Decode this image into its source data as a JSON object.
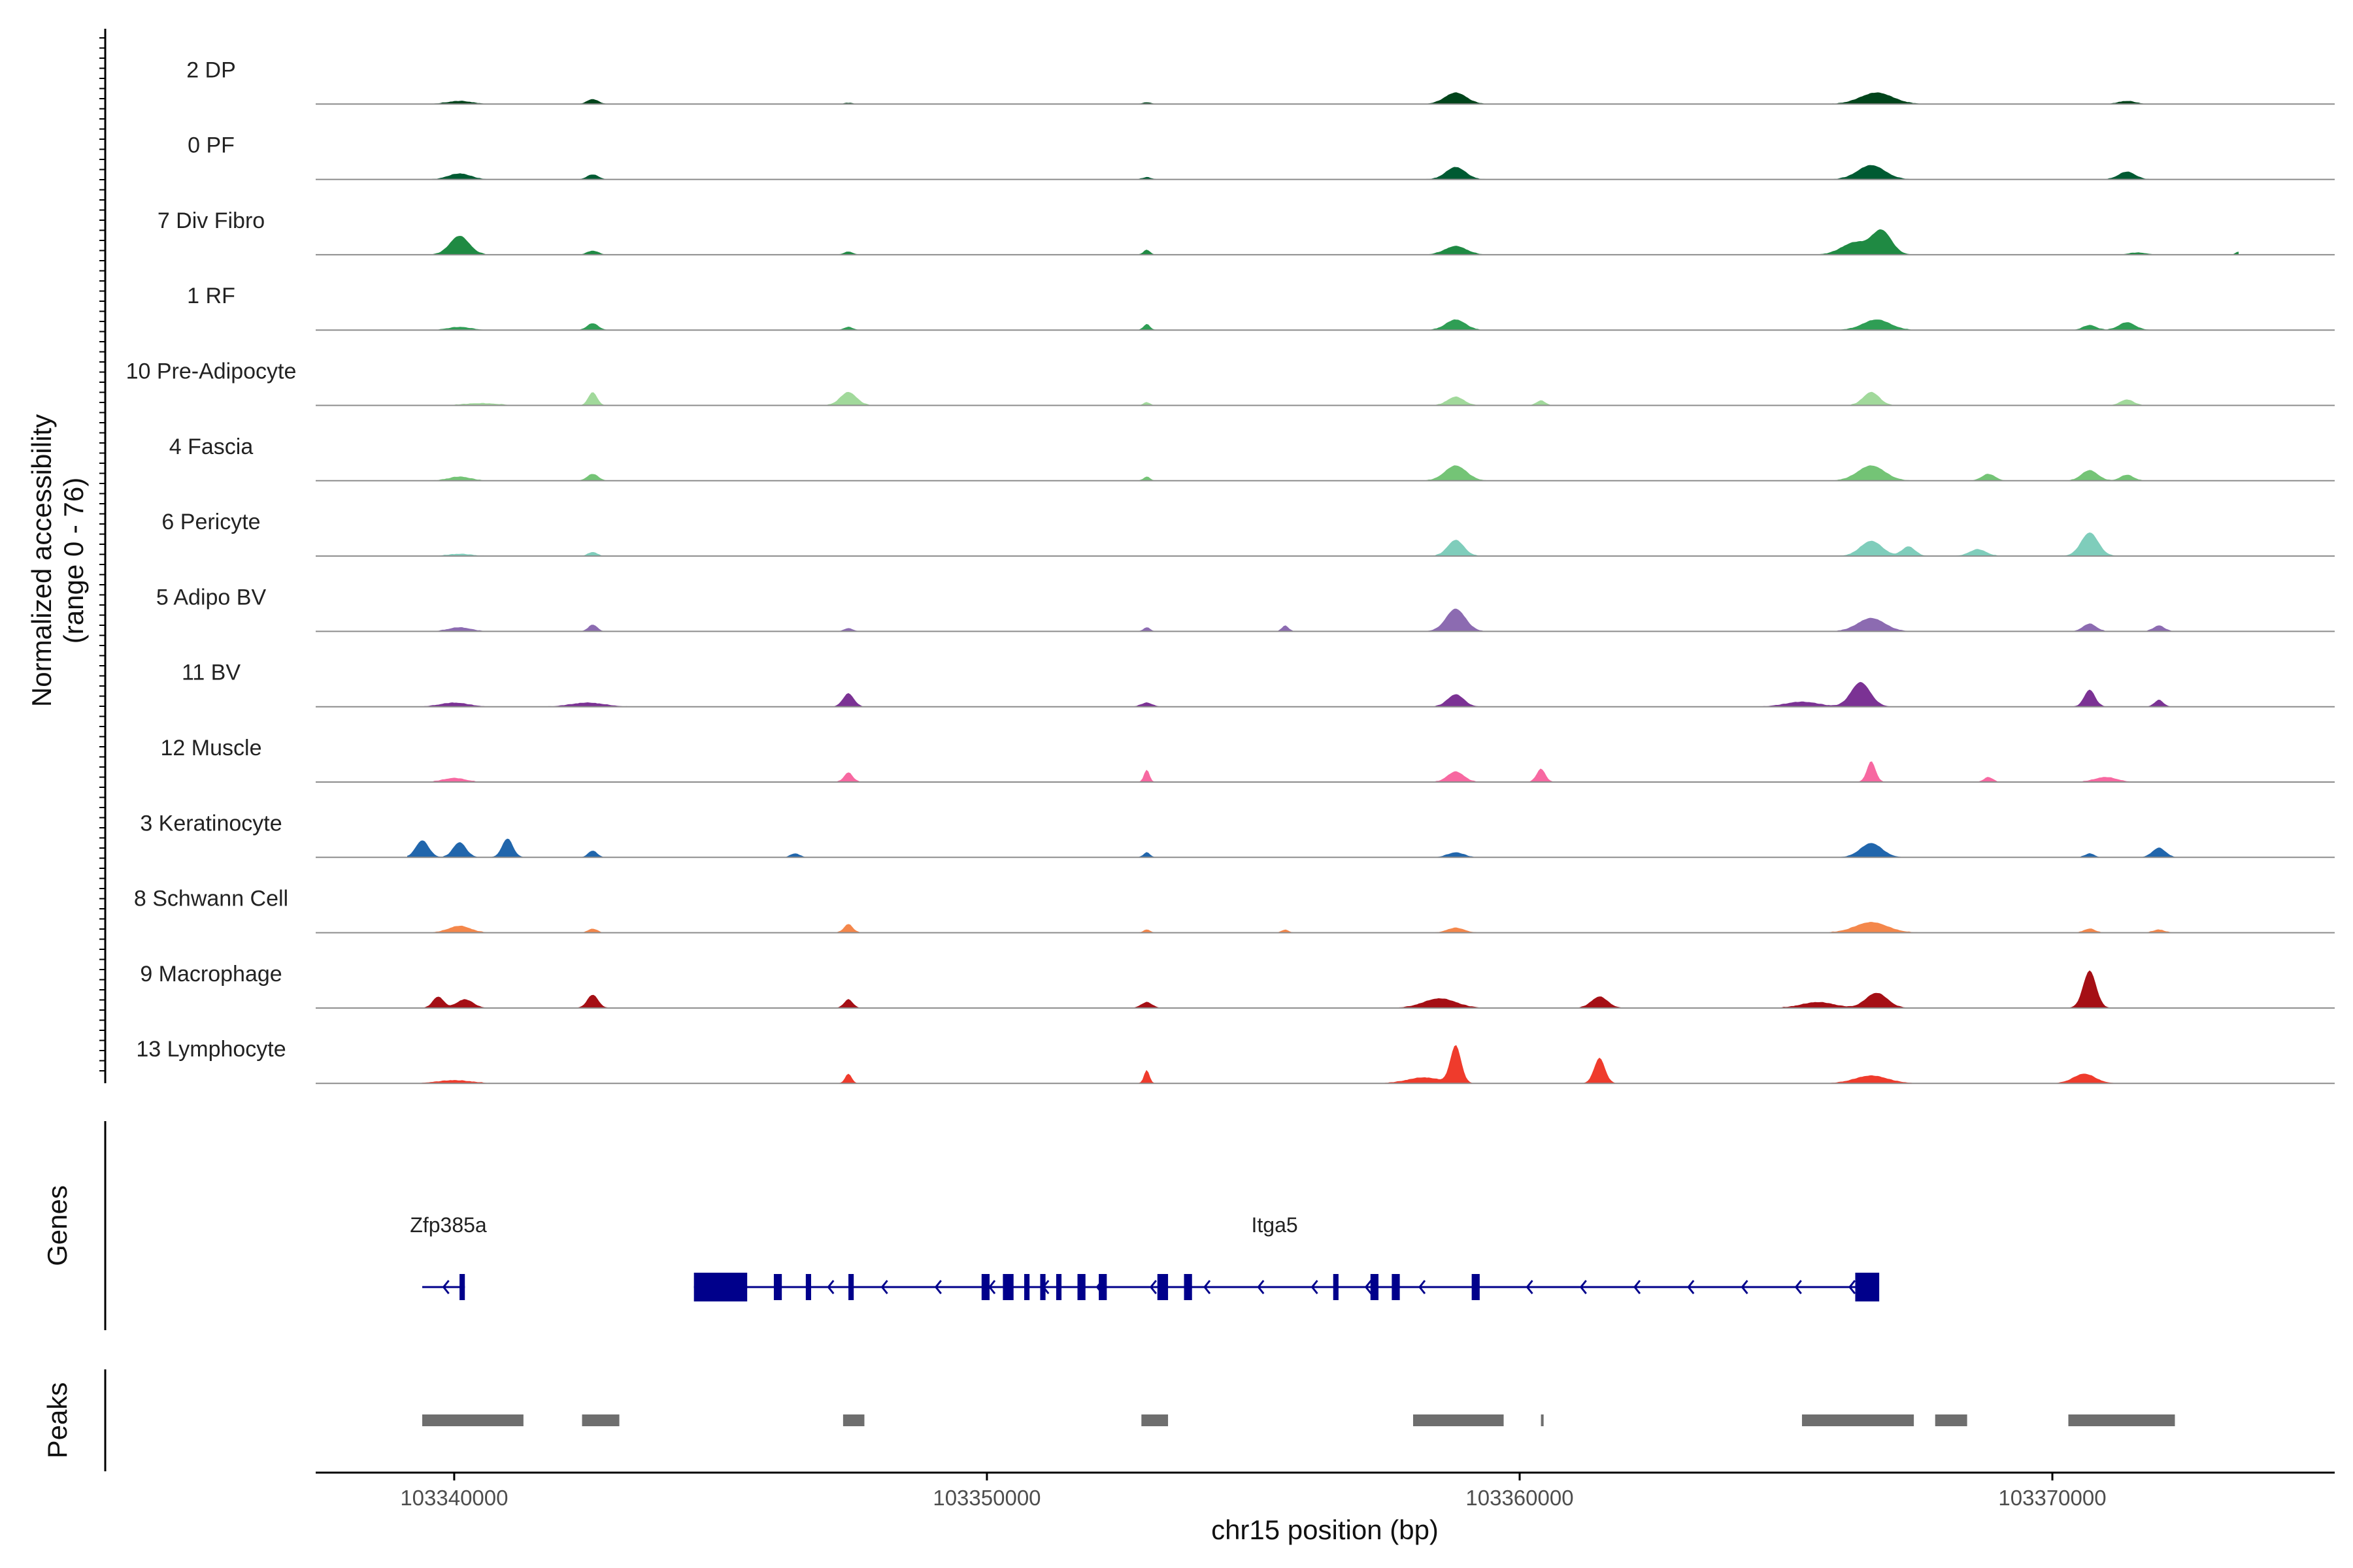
{
  "chart_data": {
    "type": "area",
    "subtype": "genome-coverage-tracks",
    "ylabel": "Normalized accessibility",
    "ylabel_range": "(range 0 - 76)",
    "ylim": [
      0,
      76
    ],
    "xlabel": "chr15 position (bp)",
    "xlim": [
      103337400,
      103375300
    ],
    "xticks": [
      103340000,
      103350000,
      103360000,
      103370000
    ],
    "track_labels": {
      "genes": "Genes",
      "peaks": "Peaks"
    },
    "tracks": [
      {
        "name": "2 DP",
        "color": "#00441b",
        "peaks": [
          [
            103340100,
            3,
            220
          ],
          [
            103342600,
            5,
            100
          ],
          [
            103358800,
            12,
            200
          ],
          [
            103366700,
            12,
            300
          ],
          [
            103371400,
            3,
            150
          ],
          [
            103347400,
            1,
            80
          ],
          [
            103353000,
            1.5,
            80
          ]
        ]
      },
      {
        "name": "0 PF",
        "color": "#005a32",
        "peaks": [
          [
            103340100,
            6,
            200
          ],
          [
            103342600,
            5,
            100
          ],
          [
            103358800,
            13,
            180
          ],
          [
            103366600,
            15,
            250
          ],
          [
            103371400,
            8,
            150
          ],
          [
            103353000,
            2,
            80
          ]
        ]
      },
      {
        "name": "7 Div Fibro",
        "color": "#1f8a43",
        "peaks": [
          [
            103340100,
            20,
            180
          ],
          [
            103342600,
            4,
            100
          ],
          [
            103347400,
            3,
            80
          ],
          [
            103353000,
            5,
            60
          ],
          [
            103358800,
            9,
            200
          ],
          [
            103366300,
            13,
            250
          ],
          [
            103366800,
            25,
            180
          ],
          [
            103371600,
            2,
            150
          ],
          [
            103373500,
            3,
            50
          ]
        ]
      },
      {
        "name": "1 RF",
        "color": "#2f9e55",
        "peaks": [
          [
            103340100,
            3,
            200
          ],
          [
            103342600,
            7,
            100
          ],
          [
            103347400,
            3,
            80
          ],
          [
            103353000,
            6,
            60
          ],
          [
            103358800,
            11,
            180
          ],
          [
            103366700,
            11,
            250
          ],
          [
            103370700,
            5,
            120
          ],
          [
            103371400,
            8,
            150
          ]
        ]
      },
      {
        "name": "10 Pre-Adipocyte",
        "color": "#a1d99b",
        "peaks": [
          [
            103342600,
            14,
            80
          ],
          [
            103347400,
            14,
            150
          ],
          [
            103353000,
            3,
            60
          ],
          [
            103358800,
            9,
            150
          ],
          [
            103360400,
            5,
            80
          ],
          [
            103366600,
            14,
            150
          ],
          [
            103371400,
            6,
            120
          ],
          [
            103340500,
            2,
            300
          ]
        ]
      },
      {
        "name": "4 Fascia",
        "color": "#74c476",
        "peaks": [
          [
            103340100,
            4,
            200
          ],
          [
            103342600,
            7,
            100
          ],
          [
            103353000,
            4,
            60
          ],
          [
            103358800,
            16,
            200
          ],
          [
            103366600,
            16,
            250
          ],
          [
            103368800,
            7,
            120
          ],
          [
            103370700,
            11,
            150
          ],
          [
            103371400,
            6,
            120
          ]
        ]
      },
      {
        "name": "6 Pericyte",
        "color": "#7fcdbb",
        "peaks": [
          [
            103342600,
            4,
            80
          ],
          [
            103358800,
            17,
            150
          ],
          [
            103366600,
            16,
            200
          ],
          [
            103367300,
            10,
            120
          ],
          [
            103368600,
            7,
            150
          ],
          [
            103370700,
            25,
            160
          ],
          [
            103340100,
            2,
            200
          ]
        ]
      },
      {
        "name": "5 Adipo BV",
        "color": "#8c6bb1",
        "peaks": [
          [
            103340100,
            4,
            200
          ],
          [
            103342600,
            7,
            80
          ],
          [
            103347400,
            3,
            80
          ],
          [
            103353000,
            4,
            60
          ],
          [
            103355600,
            6,
            60
          ],
          [
            103358800,
            24,
            180
          ],
          [
            103366600,
            14,
            250
          ],
          [
            103370700,
            8,
            120
          ],
          [
            103372000,
            6,
            100
          ]
        ]
      },
      {
        "name": "11 BV",
        "color": "#7b3294",
        "peaks": [
          [
            103340000,
            4,
            250
          ],
          [
            103342500,
            4,
            300
          ],
          [
            103347400,
            14,
            100
          ],
          [
            103353000,
            4,
            100
          ],
          [
            103358800,
            13,
            150
          ],
          [
            103366400,
            26,
            180
          ],
          [
            103370700,
            18,
            100
          ],
          [
            103372000,
            7,
            80
          ],
          [
            103365300,
            5,
            300
          ]
        ]
      },
      {
        "name": "12 Muscle",
        "color": "#f768a1",
        "peaks": [
          [
            103340000,
            4,
            200
          ],
          [
            103347400,
            10,
            80
          ],
          [
            103353000,
            13,
            50
          ],
          [
            103358800,
            11,
            150
          ],
          [
            103360400,
            14,
            80
          ],
          [
            103366600,
            22,
            80
          ],
          [
            103368800,
            5,
            80
          ],
          [
            103371000,
            5,
            200
          ]
        ]
      },
      {
        "name": "3 Keratinocyte",
        "color": "#2166ac",
        "peaks": [
          [
            103339400,
            18,
            120
          ],
          [
            103340100,
            16,
            120
          ],
          [
            103341000,
            20,
            100
          ],
          [
            103342600,
            7,
            80
          ],
          [
            103346400,
            4,
            80
          ],
          [
            103353000,
            5,
            60
          ],
          [
            103358800,
            5,
            150
          ],
          [
            103366600,
            15,
            200
          ],
          [
            103370700,
            4,
            80
          ],
          [
            103372000,
            10,
            120
          ]
        ]
      },
      {
        "name": "8 Schwann Cell",
        "color": "#f4874b",
        "peaks": [
          [
            103340100,
            7,
            200
          ],
          [
            103342600,
            4,
            80
          ],
          [
            103347400,
            9,
            80
          ],
          [
            103353000,
            3,
            60
          ],
          [
            103355600,
            3,
            60
          ],
          [
            103358800,
            5,
            150
          ],
          [
            103366600,
            11,
            300
          ],
          [
            103370700,
            4,
            100
          ],
          [
            103372000,
            3,
            100
          ]
        ]
      },
      {
        "name": "9 Macrophage",
        "color": "#a50f15",
        "peaks": [
          [
            103339700,
            12,
            100
          ],
          [
            103340200,
            9,
            150
          ],
          [
            103342600,
            14,
            100
          ],
          [
            103347400,
            9,
            80
          ],
          [
            103353000,
            6,
            100
          ],
          [
            103358500,
            10,
            300
          ],
          [
            103361500,
            12,
            150
          ],
          [
            103366700,
            16,
            200
          ],
          [
            103370700,
            40,
            120
          ],
          [
            103365600,
            6,
            300
          ]
        ]
      },
      {
        "name": "13 Lymphocyte",
        "color": "#ef3b2c",
        "peaks": [
          [
            103340000,
            3,
            300
          ],
          [
            103347400,
            10,
            60
          ],
          [
            103353000,
            14,
            50
          ],
          [
            103358800,
            40,
            100
          ],
          [
            103361500,
            27,
            100
          ],
          [
            103366600,
            8,
            300
          ],
          [
            103370600,
            10,
            200
          ],
          [
            103358200,
            6,
            300
          ]
        ]
      }
    ],
    "genes": [
      {
        "name": "Zfp385a",
        "start": 103339400,
        "end": 103340200,
        "strand": "-",
        "exons": [
          [
            103340100,
            103340200
          ]
        ]
      },
      {
        "name": "Itga5",
        "start": 103344500,
        "end": 103366700,
        "strand": "-",
        "exons": [
          [
            103344500,
            103345500
          ],
          [
            103346000,
            103346150
          ],
          [
            103346600,
            103346700
          ],
          [
            103347400,
            103347500
          ],
          [
            103349900,
            103350050
          ],
          [
            103350300,
            103350500
          ],
          [
            103350700,
            103350800
          ],
          [
            103351000,
            103351100
          ],
          [
            103351300,
            103351400
          ],
          [
            103351700,
            103351850
          ],
          [
            103352100,
            103352250
          ],
          [
            103353200,
            103353400
          ],
          [
            103353700,
            103353850
          ],
          [
            103356500,
            103356600
          ],
          [
            103357200,
            103357350
          ],
          [
            103357600,
            103357750
          ],
          [
            103359100,
            103359250
          ],
          [
            103366300,
            103366750
          ]
        ]
      }
    ],
    "peaks": [
      [
        103339400,
        103341300
      ],
      [
        103342400,
        103343100
      ],
      [
        103347300,
        103347700
      ],
      [
        103352900,
        103353400
      ],
      [
        103358000,
        103359700
      ],
      [
        103360400,
        103360450
      ],
      [
        103365300,
        103367400
      ],
      [
        103367800,
        103368400
      ],
      [
        103370300,
        103372300
      ]
    ]
  }
}
